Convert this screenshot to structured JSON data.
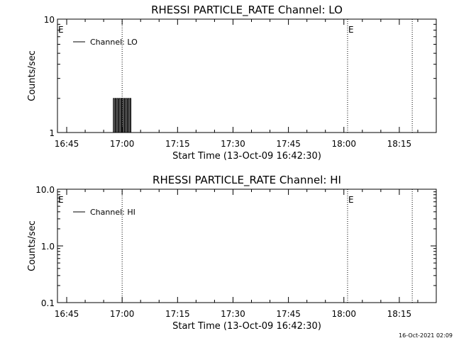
{
  "chart_data": [
    {
      "type": "line",
      "title": "RHESSI PARTICLE_RATE Channel: LO",
      "xlabel": "Start Time (13-Oct-09 16:42:30)",
      "ylabel": "Counts/sec",
      "y_scale": "log",
      "ylim": [
        1,
        10
      ],
      "y_ticks": [
        "1",
        "10"
      ],
      "x_ticks": [
        "16:45",
        "17:00",
        "17:15",
        "17:30",
        "17:45",
        "18:00",
        "18:15"
      ],
      "xlim": [
        "16:42:30",
        "18:25:00"
      ],
      "legend": "top-left",
      "series": [
        {
          "name": "Channel: LO",
          "color": "#000000",
          "x": [
            "16:57:30",
            "16:57:45",
            "16:58:00",
            "16:58:15",
            "16:58:30",
            "16:58:45",
            "16:59:00",
            "16:59:15",
            "16:59:30",
            "16:59:45",
            "17:00:00",
            "17:00:15",
            "17:00:30",
            "17:00:45",
            "17:01:00",
            "17:01:15",
            "17:01:30",
            "17:01:45",
            "17:02:00",
            "17:02:15"
          ],
          "values": [
            1,
            2,
            1,
            2,
            1,
            2,
            1,
            2,
            1,
            2,
            1,
            2,
            1,
            2,
            1,
            2,
            1,
            2,
            1,
            2
          ]
        }
      ],
      "markers": [
        {
          "time": "17:00:00",
          "label": ""
        },
        {
          "time": "18:01:00",
          "label": "E"
        },
        {
          "time": "18:18:30",
          "label": ""
        }
      ],
      "edge_label": "E",
      "grid": false
    },
    {
      "type": "line",
      "title": "RHESSI PARTICLE_RATE Channel: HI",
      "xlabel": "Start Time (13-Oct-09 16:42:30)",
      "ylabel": "Counts/sec",
      "y_scale": "log",
      "ylim": [
        0.1,
        10
      ],
      "y_ticks": [
        "0.1",
        "1.0",
        "10.0"
      ],
      "x_ticks": [
        "16:45",
        "17:00",
        "17:15",
        "17:30",
        "17:45",
        "18:00",
        "18:15"
      ],
      "xlim": [
        "16:42:30",
        "18:25:00"
      ],
      "legend": "top-left",
      "series": [
        {
          "name": "Channel: HI",
          "color": "#000000",
          "x": [],
          "values": []
        }
      ],
      "markers": [
        {
          "time": "17:00:00",
          "label": ""
        },
        {
          "time": "18:01:00",
          "label": "E"
        },
        {
          "time": "18:18:30",
          "label": ""
        }
      ],
      "edge_label": "E",
      "grid": false
    }
  ],
  "timestamp": "16-Oct-2021 02:09"
}
